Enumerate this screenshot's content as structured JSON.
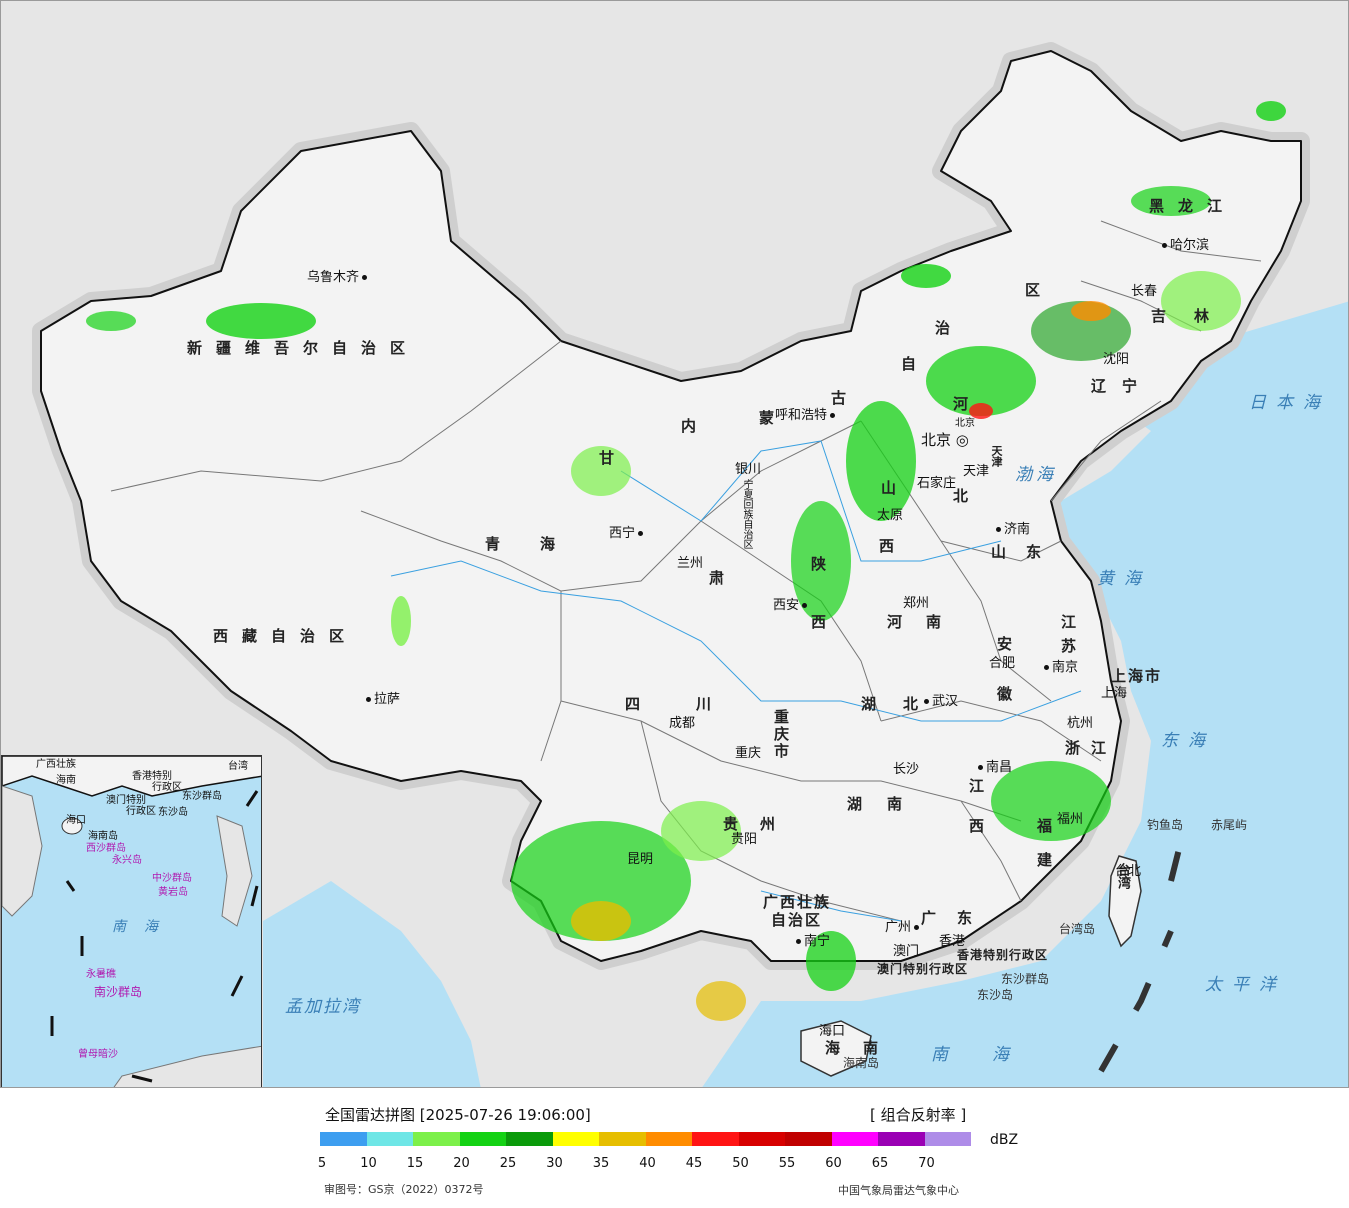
{
  "title": "全国雷达拼图 [2025-07-26 19:06:00]",
  "product": "[ 组合反射率 ]",
  "unit": "dBZ",
  "review_number": "审图号：GS京（2022）0372号",
  "issuer": "中国气象局雷达气象中心",
  "colorbar": {
    "colors": [
      "#3d9ef0",
      "#6ee6e6",
      "#7cf04a",
      "#14d214",
      "#0a9a0a",
      "#ffff00",
      "#e6be00",
      "#ff8c00",
      "#ff1414",
      "#d70000",
      "#c00000",
      "#ff00ff",
      "#9a00b4",
      "#ae8ce8"
    ],
    "ticks": [
      "5",
      "10",
      "15",
      "20",
      "25",
      "30",
      "35",
      "40",
      "45",
      "50",
      "55",
      "60",
      "65",
      "70"
    ]
  },
  "map": {
    "provinces": [
      "新疆维吾尔自治区",
      "西藏自治区",
      "青海",
      "甘",
      "肃",
      "内",
      "蒙",
      "古",
      "自",
      "治",
      "区",
      "黑龙江",
      "吉林",
      "辽宁",
      "河",
      "北",
      "山",
      "西",
      "陕",
      "西",
      "河南",
      "山东",
      "江",
      "苏",
      "安",
      "徽",
      "湖",
      "北",
      "四川",
      "重庆市",
      "贵州",
      "湖",
      "南",
      "江",
      "西",
      "浙",
      "江",
      "福",
      "建",
      "广",
      "东",
      "广西壮族",
      "自治区",
      "海",
      "南",
      "上海市",
      "宁夏回族自治区",
      "天津",
      "北京",
      "台湾",
      "香港特别行政区",
      "澳门特别行政区"
    ],
    "cities": [
      "乌鲁木齐",
      "拉萨",
      "西宁",
      "兰州",
      "银川",
      "呼和浩特",
      "北京",
      "天津",
      "石家庄",
      "太原",
      "济南",
      "郑州",
      "西安",
      "成都",
      "重庆",
      "贵阳",
      "昆明",
      "南宁",
      "广州",
      "香港",
      "澳门",
      "海口",
      "长沙",
      "武汉",
      "南昌",
      "福州",
      "杭州",
      "上海",
      "南京",
      "合肥",
      "沈阳",
      "长春",
      "哈尔滨",
      "台北"
    ],
    "seas": [
      "日本海",
      "黄海",
      "渤海",
      "东海",
      "南海",
      "太平洋",
      "孟加拉湾"
    ],
    "islands": [
      "钓鱼岛",
      "赤尾屿",
      "台湾岛",
      "东沙群岛",
      "东沙岛",
      "海南岛"
    ],
    "inset_labels": [
      "广西壮族",
      "海南",
      "香港特别",
      "行政区",
      "澳门特别",
      "行政区",
      "东沙群岛",
      "东沙岛",
      "海口",
      "海南岛",
      "西沙群岛",
      "永兴岛",
      "中沙群岛",
      "黄岩岛",
      "南海",
      "永暑礁",
      "南沙群岛",
      "曾母暗沙",
      "台湾"
    ]
  }
}
